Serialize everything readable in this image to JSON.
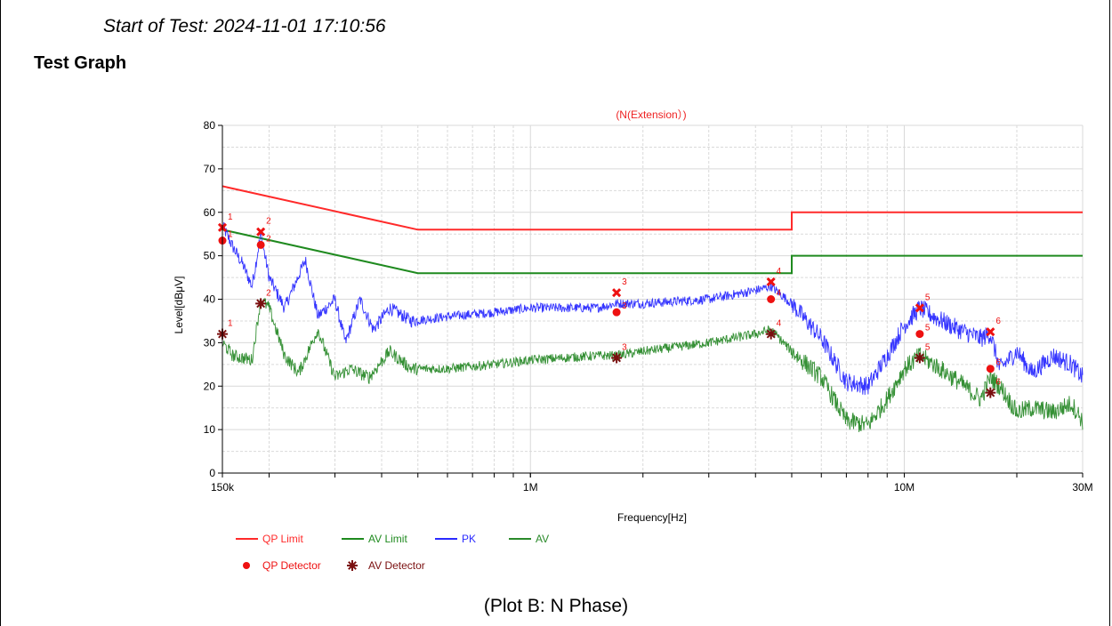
{
  "header": {
    "start_of_test": "Start of Test: 2024-11-01 17:10:56",
    "section_title": "Test Graph"
  },
  "caption": "(Plot B: N Phase)",
  "colors": {
    "qp_limit": "#ff2a2a",
    "av_limit": "#1f8a1f",
    "pk": "#2a2aff",
    "av": "#2a8a2a",
    "qp_detector": "#ee1111",
    "av_detector": "#7a0f0f",
    "title": "#ee2222"
  },
  "chart_data": {
    "type": "line",
    "title": "(N(Extension）)",
    "xlabel": "Frequency[Hz]",
    "ylabel": "Level[dBμV]",
    "x_scale": "log",
    "xlim": [
      150000,
      30000000
    ],
    "ylim": [
      0,
      80
    ],
    "grid": true,
    "x_ticks": [
      {
        "value": 150000,
        "label": "150k"
      },
      {
        "value": 1000000,
        "label": "1M"
      },
      {
        "value": 10000000,
        "label": "10M"
      },
      {
        "value": 30000000,
        "label": "30M"
      }
    ],
    "y_ticks": [
      0,
      10,
      20,
      30,
      40,
      50,
      60,
      70,
      80
    ],
    "legend_position": "bottom-left",
    "legend": [
      {
        "name": "QP Limit",
        "kind": "line",
        "color": "#ff2a2a"
      },
      {
        "name": "AV Limit",
        "kind": "line",
        "color": "#1f8a1f"
      },
      {
        "name": "PK",
        "kind": "line",
        "color": "#2a2aff"
      },
      {
        "name": "AV",
        "kind": "line",
        "color": "#2a8a2a"
      },
      {
        "name": "QP Detector",
        "kind": "dot",
        "color": "#ee1111"
      },
      {
        "name": "AV Detector",
        "kind": "star",
        "color": "#7a0f0f"
      }
    ],
    "series": [
      {
        "name": "QP Limit",
        "color": "#ff2a2a",
        "points": [
          [
            150000,
            66
          ],
          [
            500000,
            56
          ],
          [
            5000000,
            56
          ],
          [
            5000000,
            60
          ],
          [
            30000000,
            60
          ]
        ]
      },
      {
        "name": "AV Limit",
        "color": "#1f8a1f",
        "points": [
          [
            150000,
            56
          ],
          [
            500000,
            46
          ],
          [
            5000000,
            46
          ],
          [
            5000000,
            50
          ],
          [
            30000000,
            50
          ]
        ]
      },
      {
        "name": "PK",
        "color": "#2a2aff",
        "points": [
          [
            150000,
            57
          ],
          [
            160000,
            52
          ],
          [
            170000,
            48
          ],
          [
            180000,
            43
          ],
          [
            190000,
            55
          ],
          [
            200000,
            45
          ],
          [
            220000,
            38
          ],
          [
            250000,
            49
          ],
          [
            270000,
            36
          ],
          [
            300000,
            40
          ],
          [
            320000,
            30
          ],
          [
            350000,
            40
          ],
          [
            380000,
            33
          ],
          [
            420000,
            38
          ],
          [
            480000,
            35
          ],
          [
            600000,
            36
          ],
          [
            800000,
            37
          ],
          [
            1000000,
            38
          ],
          [
            1500000,
            38
          ],
          [
            1700000,
            39
          ],
          [
            2000000,
            39
          ],
          [
            3000000,
            40
          ],
          [
            4000000,
            42
          ],
          [
            4400000,
            43
          ],
          [
            5000000,
            39
          ],
          [
            6000000,
            31
          ],
          [
            7000000,
            21
          ],
          [
            8000000,
            20
          ],
          [
            9000000,
            27
          ],
          [
            10000000,
            34
          ],
          [
            11000000,
            38
          ],
          [
            12000000,
            36
          ],
          [
            14000000,
            33
          ],
          [
            16000000,
            31
          ],
          [
            17000000,
            32
          ],
          [
            18000000,
            24
          ],
          [
            20000000,
            28
          ],
          [
            22000000,
            23
          ],
          [
            25000000,
            27
          ],
          [
            28000000,
            25
          ],
          [
            30000000,
            22
          ]
        ]
      },
      {
        "name": "AV",
        "color": "#2a8a2a",
        "points": [
          [
            150000,
            30
          ],
          [
            160000,
            27
          ],
          [
            180000,
            26
          ],
          [
            190000,
            40
          ],
          [
            200000,
            38
          ],
          [
            220000,
            27
          ],
          [
            240000,
            23
          ],
          [
            270000,
            33
          ],
          [
            300000,
            22
          ],
          [
            330000,
            24
          ],
          [
            370000,
            22
          ],
          [
            420000,
            28
          ],
          [
            480000,
            24
          ],
          [
            600000,
            24
          ],
          [
            800000,
            25
          ],
          [
            1000000,
            26
          ],
          [
            1500000,
            27
          ],
          [
            1700000,
            27
          ],
          [
            2000000,
            28
          ],
          [
            3000000,
            30
          ],
          [
            4000000,
            32
          ],
          [
            4400000,
            33
          ],
          [
            5000000,
            28
          ],
          [
            6000000,
            22
          ],
          [
            7000000,
            12
          ],
          [
            8000000,
            11
          ],
          [
            9000000,
            17
          ],
          [
            10000000,
            24
          ],
          [
            11000000,
            27
          ],
          [
            12000000,
            25
          ],
          [
            14000000,
            21
          ],
          [
            16000000,
            17
          ],
          [
            17000000,
            22
          ],
          [
            18000000,
            20
          ],
          [
            20000000,
            14
          ],
          [
            22000000,
            15
          ],
          [
            25000000,
            14
          ],
          [
            28000000,
            16
          ],
          [
            30000000,
            12
          ]
        ]
      }
    ],
    "markers": {
      "pk_peaks": [
        {
          "label": "1",
          "x": 150000,
          "y": 56.5
        },
        {
          "label": "2",
          "x": 190000,
          "y": 55.5
        },
        {
          "label": "3",
          "x": 1700000,
          "y": 41.5
        },
        {
          "label": "4",
          "x": 4400000,
          "y": 44
        },
        {
          "label": "5",
          "x": 11000000,
          "y": 38
        },
        {
          "label": "6",
          "x": 17000000,
          "y": 32.5
        }
      ],
      "qp_detector": [
        {
          "label": "1",
          "x": 150000,
          "y": 53.5
        },
        {
          "label": "2",
          "x": 190000,
          "y": 52.5
        },
        {
          "label": "3",
          "x": 1700000,
          "y": 37
        },
        {
          "label": "4",
          "x": 4400000,
          "y": 40
        },
        {
          "label": "5",
          "x": 11000000,
          "y": 32
        },
        {
          "label": "6",
          "x": 17000000,
          "y": 24
        }
      ],
      "av_detector": [
        {
          "label": "1",
          "x": 150000,
          "y": 32
        },
        {
          "label": "2",
          "x": 190000,
          "y": 39
        },
        {
          "label": "3",
          "x": 1700000,
          "y": 26.5
        },
        {
          "label": "4",
          "x": 4400000,
          "y": 32
        },
        {
          "label": "5",
          "x": 11000000,
          "y": 26.5
        },
        {
          "label": "6",
          "x": 17000000,
          "y": 18.5
        }
      ]
    }
  }
}
